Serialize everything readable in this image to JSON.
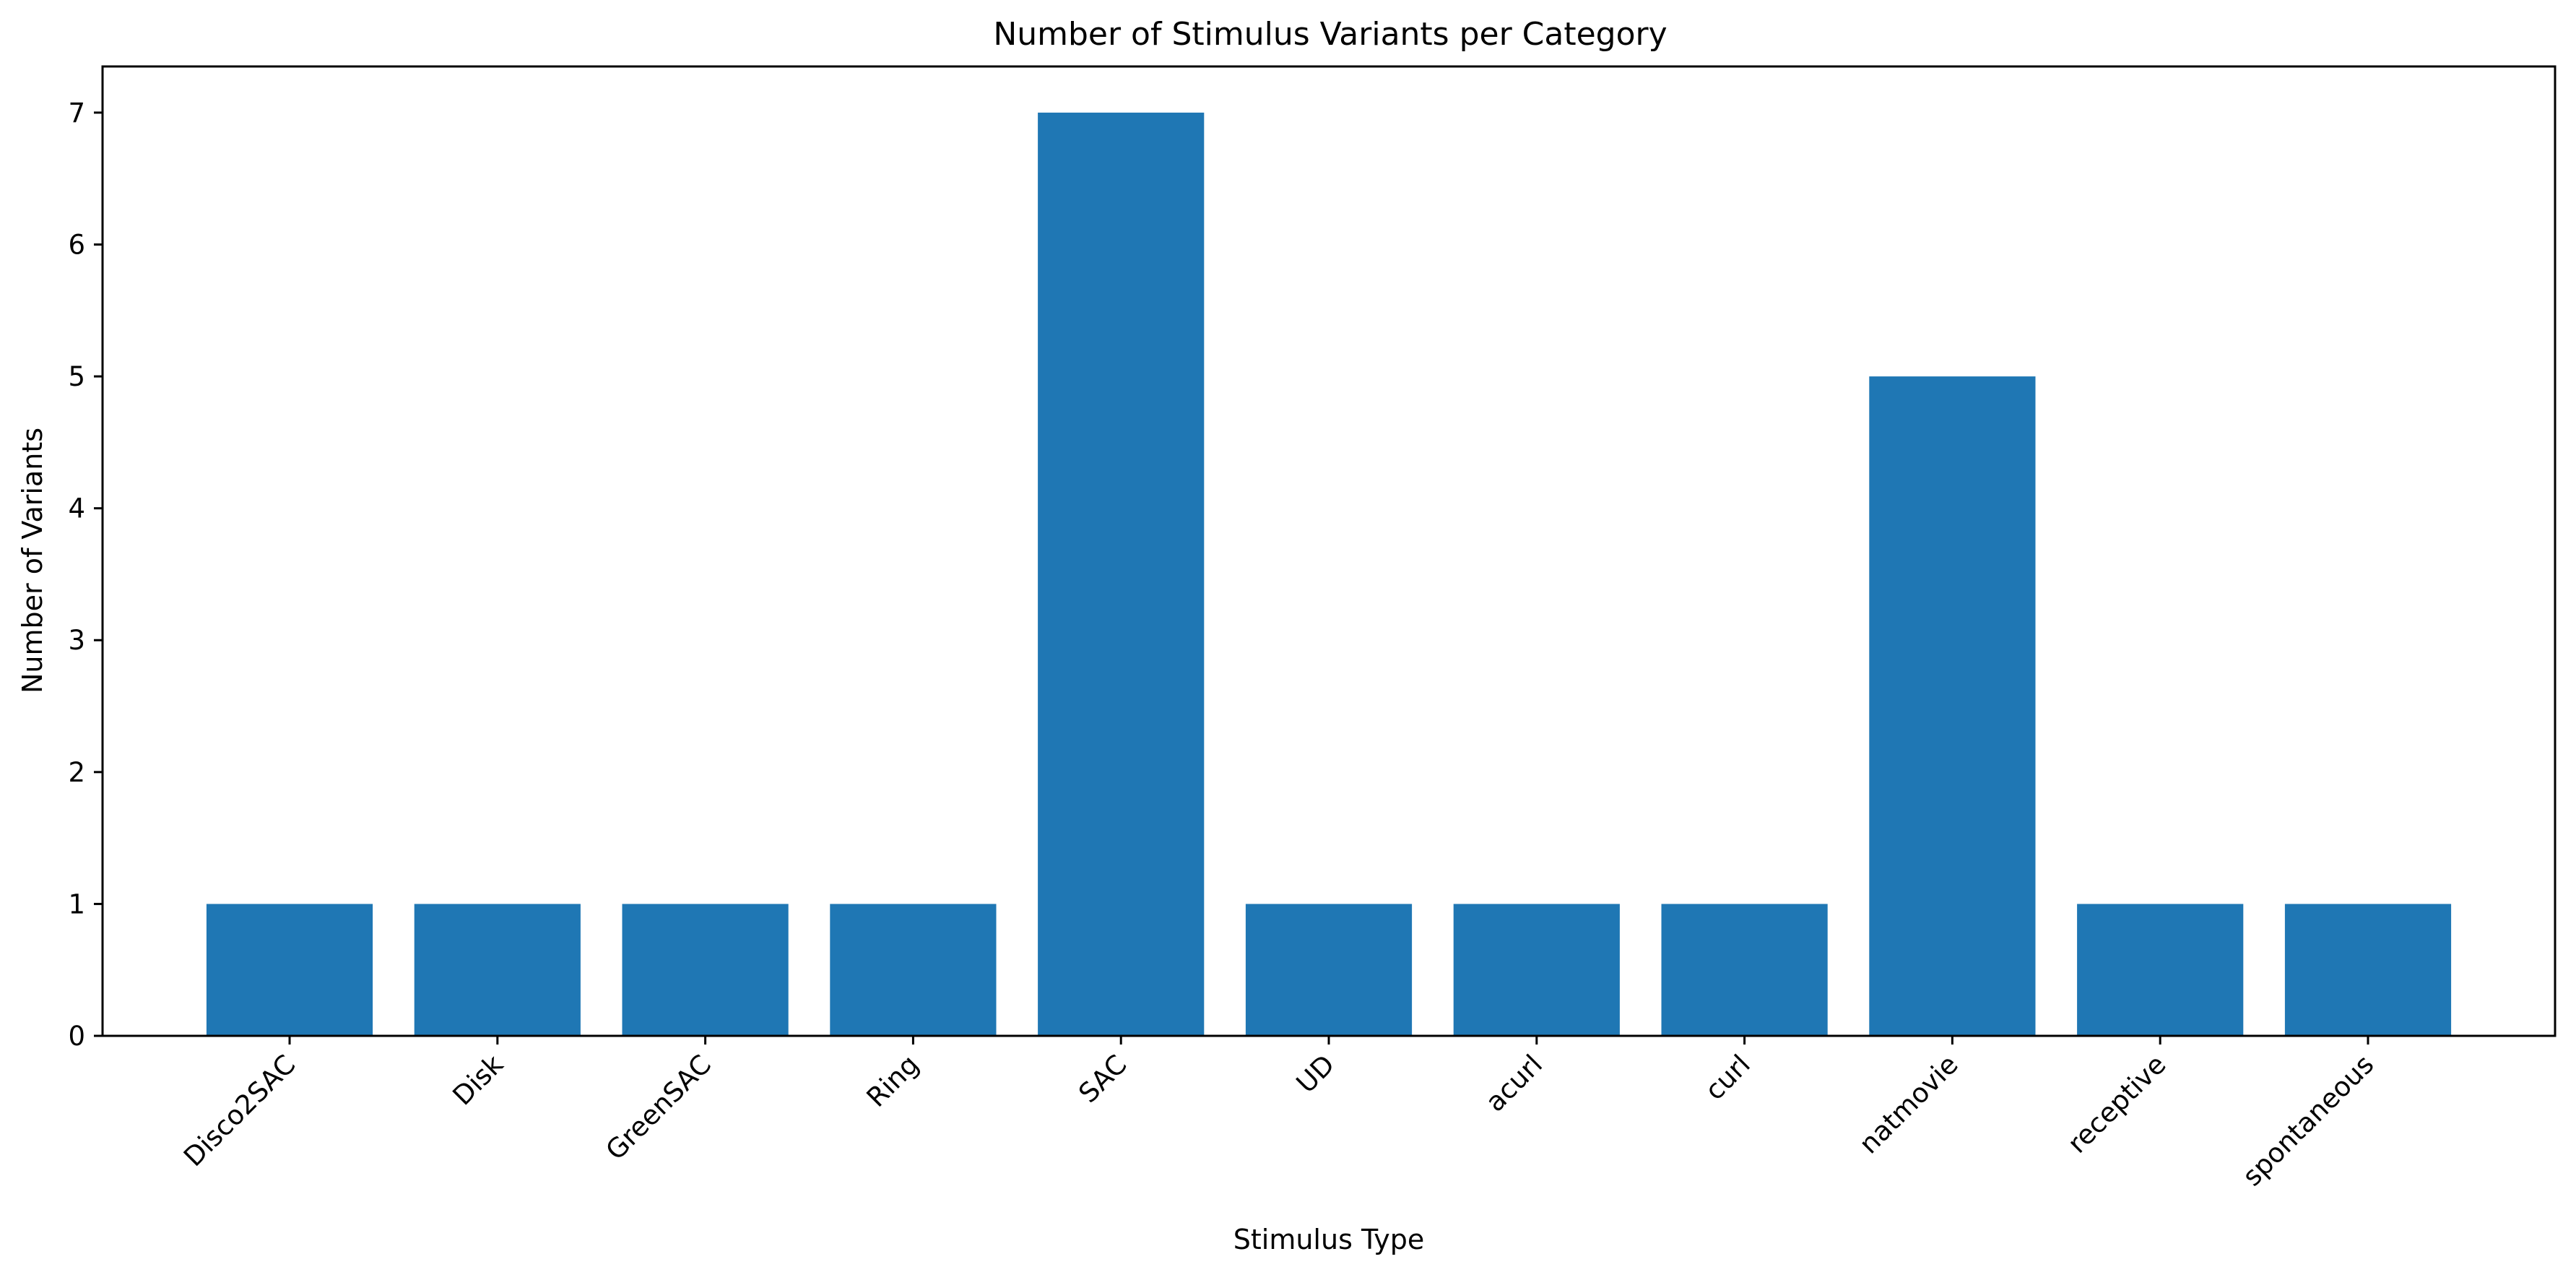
{
  "chart_data": {
    "type": "bar",
    "title": "Number of Stimulus Variants per Category",
    "xlabel": "Stimulus Type",
    "ylabel": "Number of Variants",
    "categories": [
      "Disco2SAC",
      "Disk",
      "GreenSAC",
      "Ring",
      "SAC",
      "UD",
      "acurl",
      "curl",
      "natmovie",
      "receptive",
      "spontaneous"
    ],
    "values": [
      1,
      1,
      1,
      1,
      7,
      1,
      1,
      1,
      5,
      1,
      1
    ],
    "yticks": [
      "0",
      "1",
      "2",
      "3",
      "4",
      "5",
      "6",
      "7"
    ],
    "ylim": [
      0,
      7.35
    ],
    "grid": false,
    "legend": "none",
    "bar_color": "#1f77b4"
  }
}
